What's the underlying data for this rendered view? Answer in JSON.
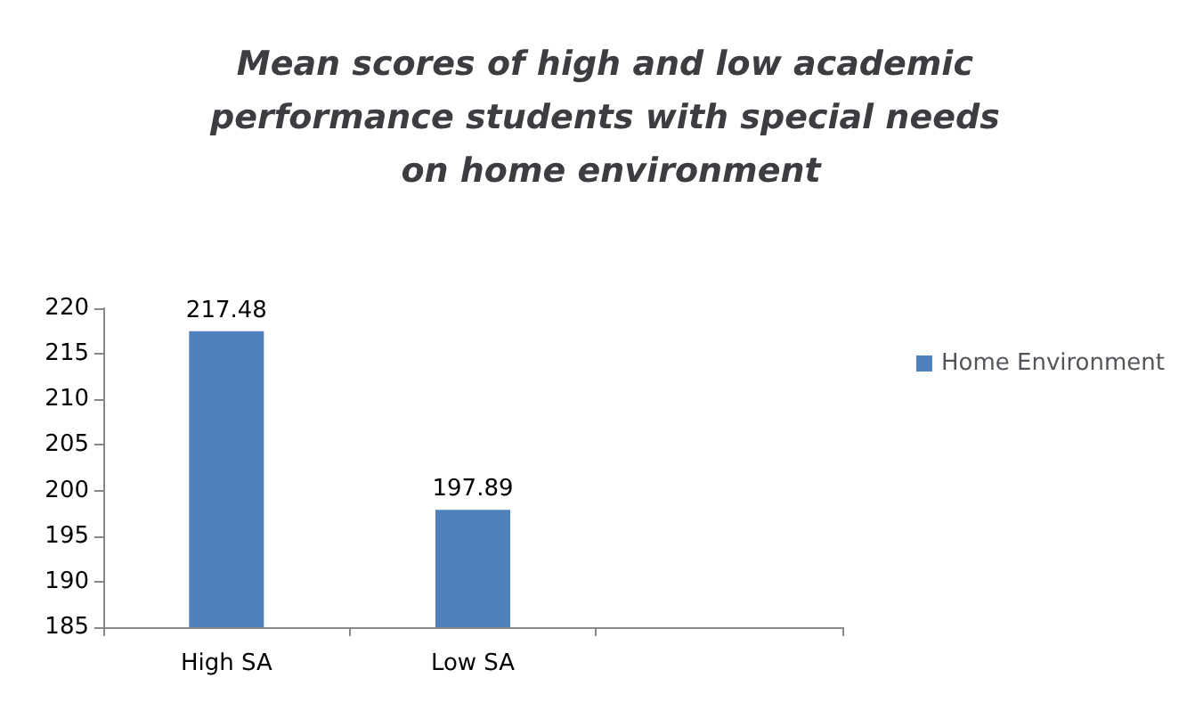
{
  "chart_data": {
    "type": "bar",
    "title": "Mean scores of high and low academic performance students with special needs on home environment",
    "categories": [
      "High SA",
      "Low SA",
      null
    ],
    "series": [
      {
        "name": "Home Environment",
        "color": "#4f81bd",
        "values": [
          217.48,
          197.89,
          null
        ]
      }
    ],
    "ylim": [
      185,
      220
    ],
    "yticks": [
      185,
      190,
      195,
      200,
      205,
      210,
      215,
      220
    ],
    "grid": false,
    "legend": "right",
    "data_labels": true
  }
}
